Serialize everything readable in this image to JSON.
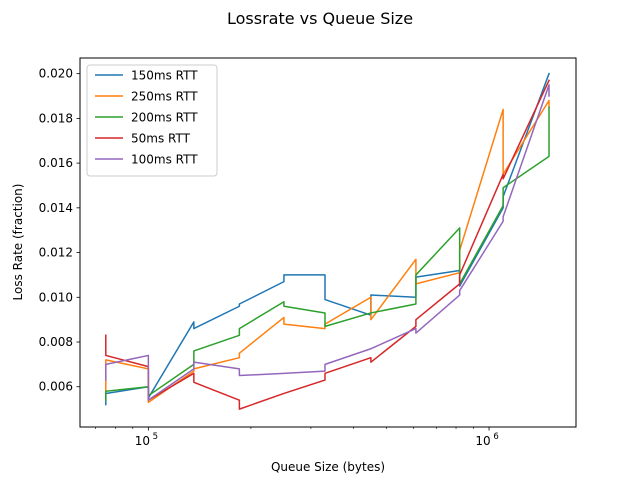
{
  "chart_data": {
    "type": "line",
    "title": "Lossrate vs Queue Size",
    "xlabel": "Queue Size (bytes)",
    "ylabel": "Loss Rate (fraction)",
    "x_scale": "log",
    "xlim": [
      63000,
      1800000
    ],
    "ylim": [
      0.0042,
      0.0207
    ],
    "x_ticks": [
      {
        "value": 100000,
        "base": "10",
        "exp": "5"
      },
      {
        "value": 1000000,
        "base": "10",
        "exp": "6"
      }
    ],
    "y_ticks": [
      0.006,
      0.008,
      0.01,
      0.012,
      0.014,
      0.016,
      0.018,
      0.02
    ],
    "y_tick_labels": [
      "0.006",
      "0.008",
      "0.010",
      "0.012",
      "0.014",
      "0.016",
      "0.018",
      "0.020"
    ],
    "grid": false,
    "legend_position": "top-left",
    "series": [
      {
        "name": "150ms RTT",
        "color": "#1f77b4",
        "points": [
          [
            75000,
            0.0052
          ],
          [
            75000,
            0.0057
          ],
          [
            100000,
            0.006
          ],
          [
            100000,
            0.0055
          ],
          [
            136000,
            0.0089
          ],
          [
            136000,
            0.0086
          ],
          [
            185000,
            0.0096
          ],
          [
            185000,
            0.0097
          ],
          [
            250000,
            0.0107
          ],
          [
            250000,
            0.011
          ],
          [
            330000,
            0.011
          ],
          [
            330000,
            0.0099
          ],
          [
            450000,
            0.0092
          ],
          [
            450000,
            0.0101
          ],
          [
            610000,
            0.01
          ],
          [
            610000,
            0.0109
          ],
          [
            820000,
            0.0112
          ],
          [
            820000,
            0.0105
          ],
          [
            1100000,
            0.014
          ],
          [
            1100000,
            0.0145
          ],
          [
            1500000,
            0.02
          ]
        ]
      },
      {
        "name": "250ms RTT",
        "color": "#ff7f0e",
        "points": [
          [
            75000,
            0.0058
          ],
          [
            75000,
            0.0072
          ],
          [
            100000,
            0.0068
          ],
          [
            100000,
            0.0053
          ],
          [
            136000,
            0.0067
          ],
          [
            136000,
            0.0068
          ],
          [
            185000,
            0.0073
          ],
          [
            185000,
            0.0075
          ],
          [
            250000,
            0.0091
          ],
          [
            250000,
            0.0088
          ],
          [
            330000,
            0.0086
          ],
          [
            330000,
            0.0088
          ],
          [
            450000,
            0.01
          ],
          [
            450000,
            0.009
          ],
          [
            610000,
            0.0117
          ],
          [
            610000,
            0.0106
          ],
          [
            820000,
            0.0111
          ],
          [
            820000,
            0.0121
          ],
          [
            1100000,
            0.0184
          ],
          [
            1100000,
            0.0155
          ],
          [
            1500000,
            0.0188
          ],
          [
            1500000,
            0.0185
          ]
        ]
      },
      {
        "name": "200ms RTT",
        "color": "#2ca02c",
        "points": [
          [
            75000,
            0.0054
          ],
          [
            75000,
            0.0058
          ],
          [
            100000,
            0.006
          ],
          [
            100000,
            0.0056
          ],
          [
            136000,
            0.007
          ],
          [
            136000,
            0.0076
          ],
          [
            185000,
            0.0083
          ],
          [
            185000,
            0.0086
          ],
          [
            250000,
            0.0098
          ],
          [
            250000,
            0.0096
          ],
          [
            330000,
            0.0093
          ],
          [
            330000,
            0.0087
          ],
          [
            450000,
            0.0093
          ],
          [
            450000,
            0.0093
          ],
          [
            610000,
            0.0097
          ],
          [
            610000,
            0.011
          ],
          [
            820000,
            0.0131
          ],
          [
            820000,
            0.0106
          ],
          [
            1100000,
            0.0141
          ],
          [
            1100000,
            0.0149
          ],
          [
            1500000,
            0.0163
          ],
          [
            1500000,
            0.0185
          ]
        ]
      },
      {
        "name": "50ms RTT",
        "color": "#d62728",
        "points": [
          [
            75000,
            0.0083
          ],
          [
            75000,
            0.0074
          ],
          [
            100000,
            0.0069
          ],
          [
            100000,
            0.0054
          ],
          [
            136000,
            0.0066
          ],
          [
            136000,
            0.0062
          ],
          [
            185000,
            0.0054
          ],
          [
            185000,
            0.005
          ],
          [
            250000,
            0.0057
          ],
          [
            250000,
            0.0057
          ],
          [
            330000,
            0.0063
          ],
          [
            330000,
            0.0066
          ],
          [
            450000,
            0.0073
          ],
          [
            450000,
            0.0071
          ],
          [
            610000,
            0.0087
          ],
          [
            610000,
            0.009
          ],
          [
            820000,
            0.0106
          ],
          [
            820000,
            0.011
          ],
          [
            1100000,
            0.0155
          ],
          [
            1100000,
            0.0153
          ],
          [
            1500000,
            0.0197
          ]
        ]
      },
      {
        "name": "100ms RTT",
        "color": "#9467bd",
        "points": [
          [
            75000,
            0.0063
          ],
          [
            75000,
            0.007
          ],
          [
            100000,
            0.0074
          ],
          [
            100000,
            0.0054
          ],
          [
            136000,
            0.0068
          ],
          [
            136000,
            0.0071
          ],
          [
            185000,
            0.0068
          ],
          [
            185000,
            0.0065
          ],
          [
            250000,
            0.0066
          ],
          [
            250000,
            0.0066
          ],
          [
            330000,
            0.0067
          ],
          [
            330000,
            0.007
          ],
          [
            450000,
            0.0077
          ],
          [
            450000,
            0.0077
          ],
          [
            610000,
            0.0086
          ],
          [
            610000,
            0.0084
          ],
          [
            820000,
            0.0101
          ],
          [
            820000,
            0.0103
          ],
          [
            1100000,
            0.0134
          ],
          [
            1100000,
            0.0136
          ],
          [
            1500000,
            0.0195
          ],
          [
            1500000,
            0.019
          ]
        ]
      }
    ]
  }
}
